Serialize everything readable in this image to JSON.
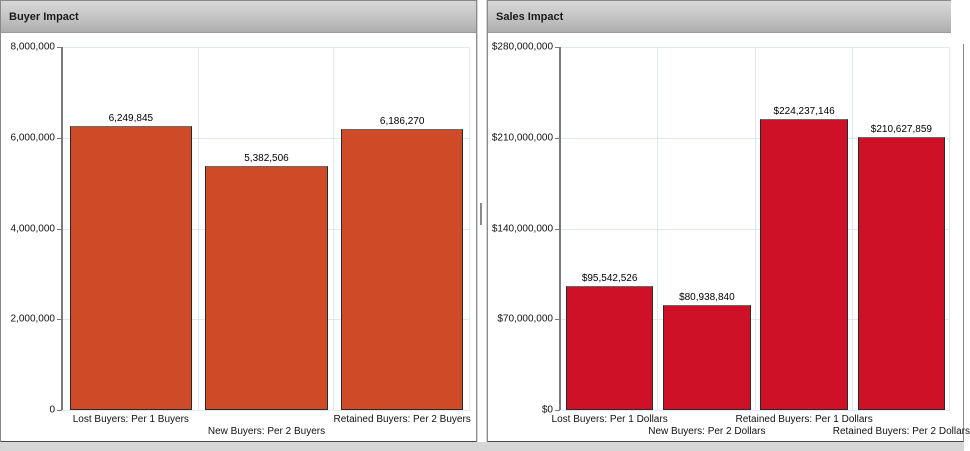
{
  "colors": {
    "buyer_bar": "#CF4A26",
    "sales_bar": "#CE1126",
    "gridline": "#DDE9F5",
    "header_gradient_top": "#D8D8D8",
    "header_gradient_bottom": "#AEAEAE"
  },
  "chart_data": [
    {
      "type": "bar",
      "title": "Buyer Impact",
      "categories": [
        "Lost Buyers: Per 1 Buyers",
        "New Buyers: Per 2 Buyers",
        "Retained Buyers: Per 2 Buyers"
      ],
      "values": [
        6249845,
        5382506,
        6186270
      ],
      "value_labels": [
        "6,249,845",
        "5,382,506",
        "6,186,270"
      ],
      "y_ticks": [
        "8,000,000",
        "6,000,000",
        "4,000,000",
        "2,000,000",
        "0"
      ],
      "ylim": [
        0,
        8000000
      ],
      "xlabel": "",
      "ylabel": "",
      "grid": true,
      "legend": "none",
      "bar_color": "#CF4A26",
      "label_rows": [
        1,
        2,
        1
      ],
      "layout": {
        "axis_width": 62,
        "right_margin": 6
      }
    },
    {
      "type": "bar",
      "title": "Sales Impact",
      "categories": [
        "Lost Buyers: Per 1 Dollars",
        "New Buyers: Per 2 Dollars",
        "Retained Buyers: Per 1 Dollars",
        "Retained Buyers: Per 2 Dollars"
      ],
      "values": [
        95542526,
        80938840,
        224237146,
        210627859
      ],
      "value_labels": [
        "$95,542,526",
        "$80,938,840",
        "$224,237,146",
        "$210,627,859"
      ],
      "y_ticks": [
        "$280,000,000",
        "$210,000,000",
        "$140,000,000",
        "$70,000,000",
        "$0"
      ],
      "ylim": [
        0,
        280000000
      ],
      "xlabel": "",
      "ylabel": "",
      "grid": true,
      "legend": "none",
      "bar_color": "#CE1126",
      "label_rows": [
        1,
        2,
        1,
        2
      ],
      "layout": {
        "axis_width": 73,
        "right_margin": 13
      }
    }
  ]
}
